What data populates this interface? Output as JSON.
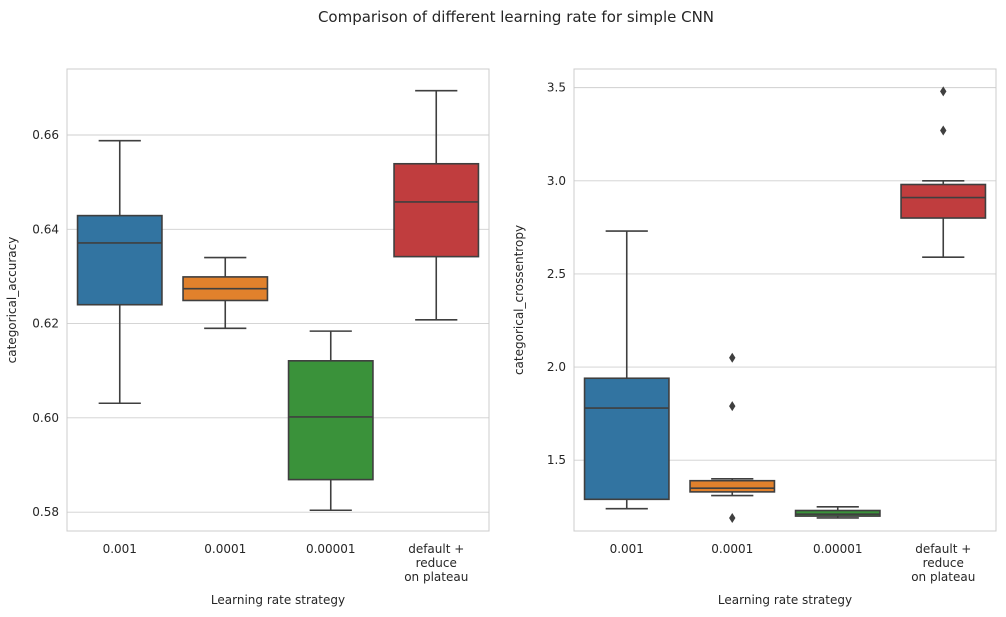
{
  "suptitle": "Comparison of different learning rate for simple CNN",
  "chart_data": [
    {
      "type": "box",
      "xlabel": "Learning rate strategy",
      "ylabel": "categorical_accuracy",
      "ylim": [
        0.576,
        0.674
      ],
      "yticks": [
        0.58,
        0.6,
        0.62,
        0.64,
        0.66
      ],
      "ytick_labels": [
        "0.58",
        "0.60",
        "0.62",
        "0.64",
        "0.66"
      ],
      "grid": true,
      "categories": [
        [
          "0.001"
        ],
        [
          "0.0001"
        ],
        [
          "0.00001"
        ],
        [
          "default +",
          "reduce",
          "on plateau"
        ]
      ],
      "boxes": [
        {
          "color": "#3274a1",
          "whisker_low": 0.6031,
          "q1": 0.624,
          "median": 0.6371,
          "q3": 0.6429,
          "whisker_high": 0.6588,
          "outliers": []
        },
        {
          "color": "#e1812c",
          "whisker_low": 0.619,
          "q1": 0.6249,
          "median": 0.6274,
          "q3": 0.6299,
          "whisker_high": 0.634,
          "outliers": []
        },
        {
          "color": "#3a923a",
          "whisker_low": 0.5804,
          "q1": 0.5869,
          "median": 0.6002,
          "q3": 0.6121,
          "whisker_high": 0.6184,
          "outliers": []
        },
        {
          "color": "#c03d3e",
          "whisker_low": 0.6208,
          "q1": 0.6342,
          "median": 0.6458,
          "q3": 0.6539,
          "whisker_high": 0.6694,
          "outliers": []
        }
      ]
    },
    {
      "type": "box",
      "xlabel": "Learning rate strategy",
      "ylabel": "categorical_crossentropy",
      "ylim": [
        1.12,
        3.6
      ],
      "yticks": [
        1.5,
        2.0,
        2.5,
        3.0,
        3.5
      ],
      "ytick_labels": [
        "1.5",
        "2.0",
        "2.5",
        "3.0",
        "3.5"
      ],
      "grid": true,
      "categories": [
        [
          "0.001"
        ],
        [
          "0.0001"
        ],
        [
          "0.00001"
        ],
        [
          "default +",
          "reduce",
          "on plateau"
        ]
      ],
      "boxes": [
        {
          "color": "#3274a1",
          "whisker_low": 1.24,
          "q1": 1.29,
          "median": 1.78,
          "q3": 1.94,
          "whisker_high": 2.73,
          "outliers": []
        },
        {
          "color": "#e1812c",
          "whisker_low": 1.31,
          "q1": 1.33,
          "median": 1.35,
          "q3": 1.39,
          "whisker_high": 1.4,
          "outliers": [
            2.05,
            1.79,
            1.19
          ]
        },
        {
          "color": "#3a923a",
          "whisker_low": 1.19,
          "q1": 1.2,
          "median": 1.21,
          "q3": 1.23,
          "whisker_high": 1.25,
          "outliers": []
        },
        {
          "color": "#c03d3e",
          "whisker_low": 2.59,
          "q1": 2.8,
          "median": 2.91,
          "q3": 2.98,
          "whisker_high": 3.0,
          "outliers": [
            3.48,
            3.27
          ]
        }
      ]
    }
  ]
}
